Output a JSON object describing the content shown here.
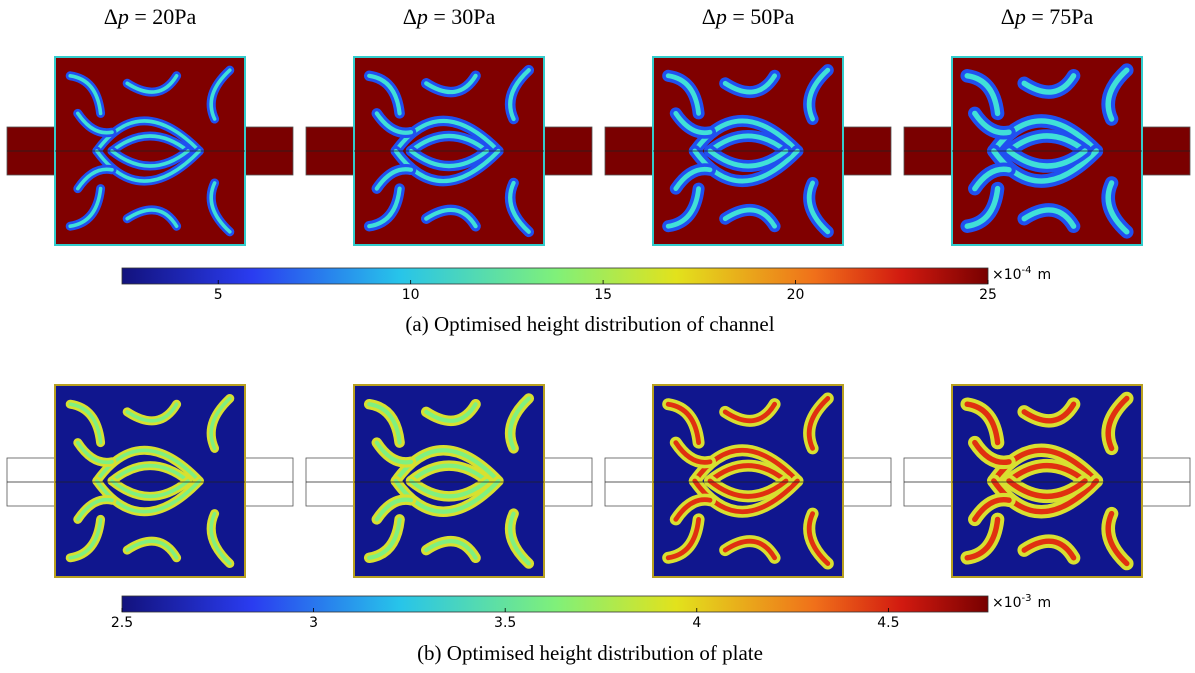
{
  "columns": [
    {
      "delta": "Δ",
      "variable": "p",
      "value": " = 20Pa"
    },
    {
      "delta": "Δ",
      "variable": "p",
      "value": " = 30Pa"
    },
    {
      "delta": "Δ",
      "variable": "p",
      "value": " = 50Pa"
    },
    {
      "delta": "Δ",
      "variable": "p",
      "value": " = 75Pa"
    }
  ],
  "panels": [
    {
      "caption": "(a) Optimised height distribution of channel",
      "colorbar": {
        "lim": [
          2.5,
          25
        ],
        "ticks": [
          5,
          10,
          15,
          20,
          25
        ],
        "unit_prefix": "×10",
        "unit_exponent": "-4",
        "unit": "m"
      }
    },
    {
      "caption": "(b) Optimised height distribution of plate",
      "colorbar": {
        "lim": [
          2.5,
          4.76
        ],
        "ticks": [
          2.5,
          3,
          3.5,
          4,
          4.5
        ],
        "unit_prefix": "×10",
        "unit_exponent": "-3",
        "unit": "m"
      }
    }
  ]
}
